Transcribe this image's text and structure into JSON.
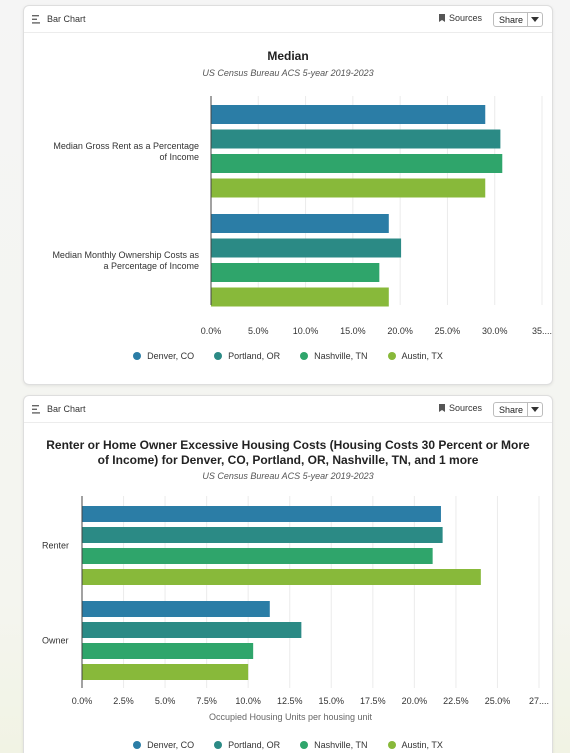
{
  "cards": [
    {
      "header": {
        "type_label": "Bar Chart",
        "sources_label": "Sources",
        "share_label": "Share"
      },
      "chart_data": {
        "type": "bar",
        "orientation": "horizontal",
        "title": "Median",
        "subtitle": "US Census Bureau ACS 5-year 2019-2023",
        "xlabel": "",
        "categories": [
          [
            "Median Gross Rent as a Percentage",
            "of Income"
          ],
          [
            "Median Monthly Ownership Costs as",
            "a Percentage of Income"
          ]
        ],
        "series": [
          {
            "name": "Denver, CO",
            "color": "#2b7da6",
            "values": [
              29.0,
              18.8
            ]
          },
          {
            "name": "Portland, OR",
            "color": "#2b8a85",
            "values": [
              30.6,
              20.1
            ]
          },
          {
            "name": "Nashville, TN",
            "color": "#2fa56b",
            "values": [
              30.8,
              17.8
            ]
          },
          {
            "name": "Austin, TX",
            "color": "#88b93a",
            "values": [
              29.0,
              18.8
            ]
          }
        ],
        "xticks": [
          "0.0%",
          "5.0%",
          "10.0%",
          "15.0%",
          "20.0%",
          "25.0%",
          "30.0%",
          "35...."
        ],
        "xlim": [
          0,
          35
        ],
        "grid": true,
        "legend_position": "bottom"
      }
    },
    {
      "header": {
        "type_label": "Bar Chart",
        "sources_label": "Sources",
        "share_label": "Share"
      },
      "chart_data": {
        "type": "bar",
        "orientation": "horizontal",
        "title": "Renter or Home Owner Excessive Housing Costs (Housing Costs 30 Percent or More of Income) for Denver, CO, Portland, OR, Nashville, TN, and 1 more",
        "subtitle": "US Census Bureau ACS 5-year 2019-2023",
        "xlabel": "Occupied Housing Units per housing unit",
        "categories": [
          [
            "Renter"
          ],
          [
            "Owner"
          ]
        ],
        "series": [
          {
            "name": "Denver, CO",
            "color": "#2b7da6",
            "values": [
              21.6,
              11.3
            ]
          },
          {
            "name": "Portland, OR",
            "color": "#2b8a85",
            "values": [
              21.7,
              13.2
            ]
          },
          {
            "name": "Nashville, TN",
            "color": "#2fa56b",
            "values": [
              21.1,
              10.3
            ]
          },
          {
            "name": "Austin, TX",
            "color": "#88b93a",
            "values": [
              24.0,
              10.0
            ]
          }
        ],
        "xticks": [
          "0.0%",
          "2.5%",
          "5.0%",
          "7.5%",
          "10.0%",
          "12.5%",
          "15.0%",
          "17.5%",
          "20.0%",
          "22.5%",
          "25.0%",
          "27...."
        ],
        "xlim": [
          0,
          27.5
        ],
        "grid": true,
        "legend_position": "bottom"
      }
    }
  ]
}
